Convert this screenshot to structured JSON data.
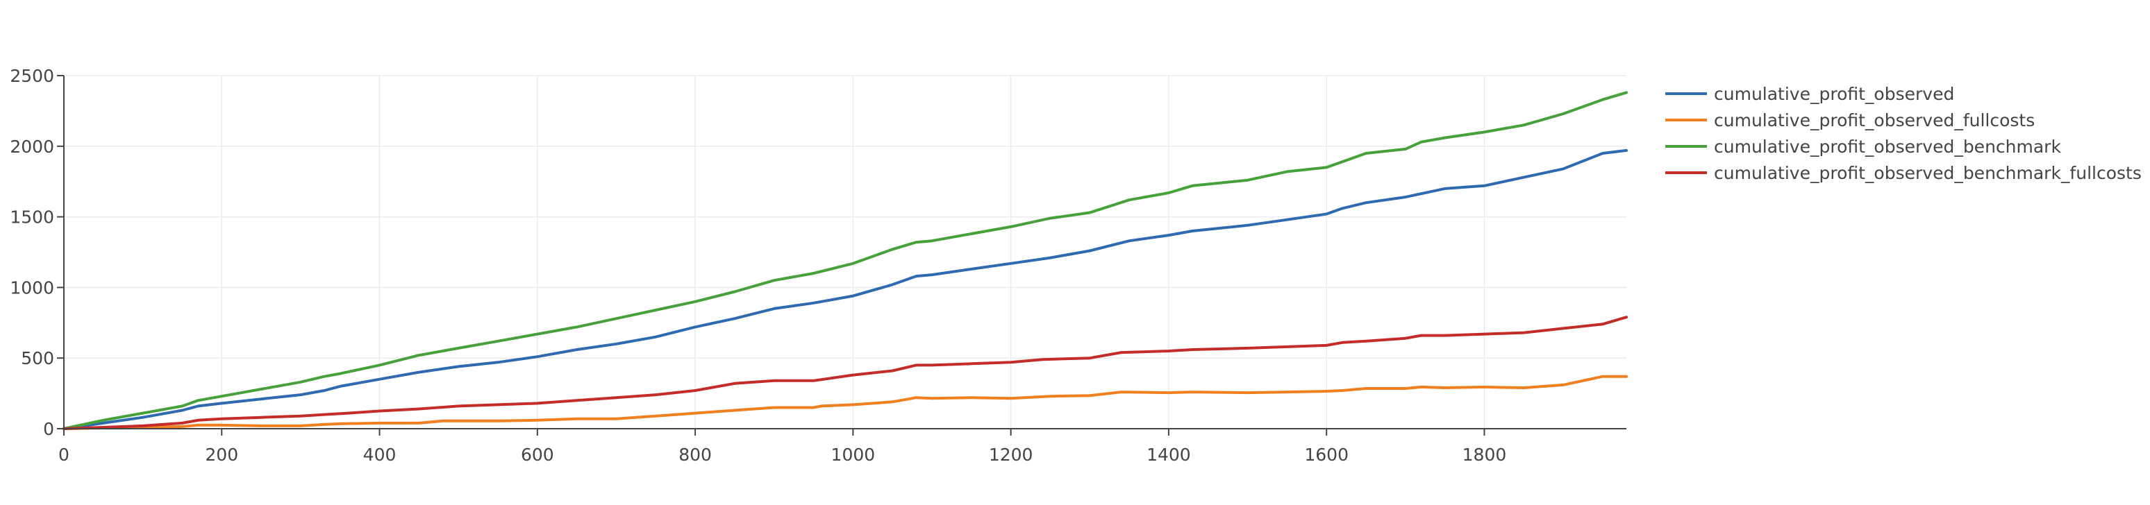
{
  "chart_data": {
    "type": "line",
    "title": "",
    "xlabel": "",
    "ylabel": "",
    "xlim": [
      0,
      1980
    ],
    "ylim": [
      0,
      2500
    ],
    "xticks": [
      0,
      200,
      400,
      600,
      800,
      1000,
      1200,
      1400,
      1600,
      1800
    ],
    "yticks": [
      0,
      500,
      1000,
      1500,
      2000,
      2500
    ],
    "grid": true,
    "legend_position": "top-right outside",
    "series": [
      {
        "name": "cumulative_profit_observed",
        "color": "#2e6aaf",
        "x": [
          0,
          50,
          100,
          150,
          170,
          200,
          250,
          300,
          330,
          350,
          400,
          450,
          500,
          550,
          600,
          650,
          700,
          750,
          800,
          850,
          900,
          950,
          1000,
          1050,
          1080,
          1100,
          1150,
          1200,
          1250,
          1300,
          1350,
          1400,
          1430,
          1500,
          1550,
          1600,
          1620,
          1650,
          1700,
          1750,
          1800,
          1850,
          1900,
          1950,
          1980
        ],
        "y": [
          0,
          40,
          80,
          130,
          160,
          180,
          210,
          240,
          270,
          300,
          350,
          400,
          440,
          470,
          510,
          560,
          600,
          650,
          720,
          780,
          850,
          890,
          940,
          1020,
          1080,
          1090,
          1130,
          1170,
          1210,
          1260,
          1330,
          1370,
          1400,
          1440,
          1480,
          1520,
          1560,
          1600,
          1640,
          1700,
          1720,
          1780,
          1840,
          1950,
          1970
        ]
      },
      {
        "name": "cumulative_profit_observed_fullcosts",
        "color": "#f07f20",
        "x": [
          0,
          50,
          100,
          150,
          170,
          200,
          250,
          300,
          330,
          350,
          400,
          450,
          480,
          550,
          600,
          650,
          700,
          750,
          800,
          850,
          900,
          950,
          960,
          1000,
          1050,
          1080,
          1100,
          1150,
          1200,
          1250,
          1300,
          1340,
          1400,
          1430,
          1500,
          1550,
          1600,
          1620,
          1650,
          1700,
          1720,
          1750,
          1800,
          1850,
          1900,
          1950,
          1980
        ],
        "y": [
          0,
          5,
          10,
          15,
          25,
          25,
          20,
          20,
          30,
          35,
          40,
          40,
          55,
          55,
          60,
          70,
          70,
          90,
          110,
          130,
          150,
          150,
          160,
          170,
          190,
          220,
          215,
          220,
          215,
          230,
          235,
          260,
          255,
          260,
          255,
          260,
          265,
          270,
          285,
          285,
          295,
          290,
          295,
          290,
          310,
          370,
          370
        ]
      },
      {
        "name": "cumulative_profit_observed_benchmark",
        "color": "#47a13a",
        "x": [
          0,
          50,
          100,
          150,
          170,
          200,
          250,
          300,
          330,
          350,
          400,
          450,
          500,
          550,
          600,
          650,
          700,
          750,
          800,
          850,
          900,
          950,
          1000,
          1050,
          1080,
          1100,
          1150,
          1200,
          1250,
          1300,
          1350,
          1400,
          1430,
          1500,
          1550,
          1600,
          1620,
          1650,
          1700,
          1720,
          1750,
          1800,
          1850,
          1900,
          1950,
          1980
        ],
        "y": [
          0,
          60,
          110,
          160,
          200,
          230,
          280,
          330,
          370,
          390,
          450,
          520,
          570,
          620,
          670,
          720,
          780,
          840,
          900,
          970,
          1050,
          1100,
          1170,
          1270,
          1320,
          1330,
          1380,
          1430,
          1490,
          1530,
          1620,
          1670,
          1720,
          1760,
          1820,
          1850,
          1890,
          1950,
          1980,
          2030,
          2060,
          2100,
          2150,
          2230,
          2330,
          2380
        ]
      },
      {
        "name": "cumulative_profit_observed_benchmark_fullcosts",
        "color": "#c42c2a",
        "x": [
          0,
          50,
          100,
          150,
          170,
          200,
          250,
          300,
          330,
          360,
          400,
          450,
          500,
          550,
          600,
          650,
          700,
          750,
          800,
          850,
          900,
          950,
          1000,
          1050,
          1080,
          1100,
          1150,
          1200,
          1240,
          1300,
          1340,
          1400,
          1430,
          1500,
          1550,
          1600,
          1620,
          1650,
          1700,
          1720,
          1750,
          1800,
          1850,
          1900,
          1950,
          1980
        ],
        "y": [
          0,
          10,
          20,
          40,
          60,
          70,
          80,
          90,
          100,
          110,
          125,
          140,
          160,
          170,
          180,
          200,
          220,
          240,
          270,
          320,
          340,
          340,
          380,
          410,
          450,
          450,
          460,
          470,
          490,
          500,
          540,
          550,
          560,
          570,
          580,
          590,
          610,
          620,
          640,
          660,
          660,
          670,
          680,
          710,
          740,
          790
        ]
      }
    ]
  }
}
